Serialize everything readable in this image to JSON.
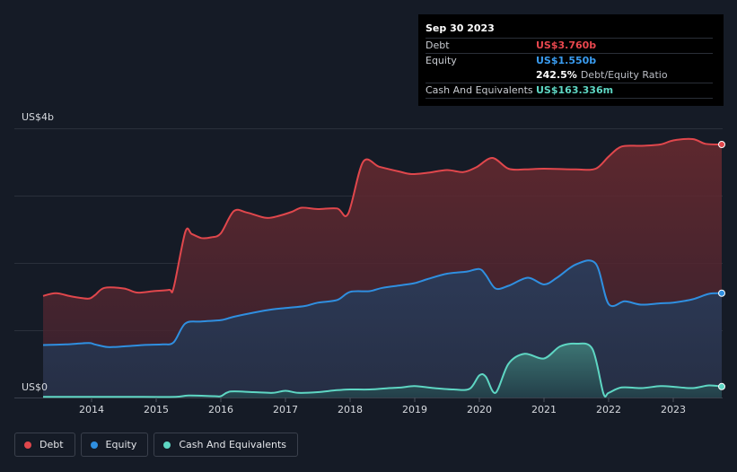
{
  "chart_data": {
    "type": "area",
    "currency_unit": "US$ billions",
    "y_axis": {
      "top_label": "US$4b",
      "bottom_label": "US$0",
      "ylim": [
        0,
        4.0
      ]
    },
    "x_axis": {
      "ticks": [
        "2014",
        "2015",
        "2016",
        "2017",
        "2018",
        "2019",
        "2020",
        "2021",
        "2022",
        "2023"
      ],
      "xlim": [
        2013.25,
        2023.85
      ]
    },
    "series": [
      {
        "name": "Debt",
        "color": "#e0474c",
        "points": [
          [
            2013.25,
            1.51
          ],
          [
            2013.45,
            1.55
          ],
          [
            2013.7,
            1.5
          ],
          [
            2013.95,
            1.47
          ],
          [
            2014.05,
            1.52
          ],
          [
            2014.2,
            1.63
          ],
          [
            2014.5,
            1.62
          ],
          [
            2014.7,
            1.56
          ],
          [
            2014.95,
            1.58
          ],
          [
            2015.2,
            1.6
          ],
          [
            2015.27,
            1.63
          ],
          [
            2015.45,
            2.46
          ],
          [
            2015.55,
            2.43
          ],
          [
            2015.7,
            2.37
          ],
          [
            2015.85,
            2.38
          ],
          [
            2016.0,
            2.44
          ],
          [
            2016.2,
            2.77
          ],
          [
            2016.4,
            2.75
          ],
          [
            2016.7,
            2.67
          ],
          [
            2016.9,
            2.7
          ],
          [
            2017.1,
            2.76
          ],
          [
            2017.25,
            2.82
          ],
          [
            2017.5,
            2.8
          ],
          [
            2017.8,
            2.81
          ],
          [
            2017.97,
            2.73
          ],
          [
            2018.2,
            3.5
          ],
          [
            2018.45,
            3.43
          ],
          [
            2018.75,
            3.36
          ],
          [
            2018.95,
            3.32
          ],
          [
            2019.2,
            3.34
          ],
          [
            2019.5,
            3.38
          ],
          [
            2019.75,
            3.35
          ],
          [
            2019.95,
            3.42
          ],
          [
            2020.2,
            3.56
          ],
          [
            2020.45,
            3.4
          ],
          [
            2020.7,
            3.39
          ],
          [
            2021.0,
            3.4
          ],
          [
            2021.5,
            3.39
          ],
          [
            2021.8,
            3.4
          ],
          [
            2022.0,
            3.58
          ],
          [
            2022.2,
            3.73
          ],
          [
            2022.5,
            3.74
          ],
          [
            2022.8,
            3.76
          ],
          [
            2023.0,
            3.82
          ],
          [
            2023.3,
            3.84
          ],
          [
            2023.5,
            3.77
          ],
          [
            2023.75,
            3.76
          ]
        ]
      },
      {
        "name": "Equity",
        "color": "#2f8fe0",
        "points": [
          [
            2013.25,
            0.78
          ],
          [
            2013.6,
            0.79
          ],
          [
            2013.95,
            0.81
          ],
          [
            2014.05,
            0.79
          ],
          [
            2014.25,
            0.75
          ],
          [
            2014.5,
            0.76
          ],
          [
            2014.8,
            0.78
          ],
          [
            2015.1,
            0.79
          ],
          [
            2015.27,
            0.82
          ],
          [
            2015.45,
            1.1
          ],
          [
            2015.7,
            1.13
          ],
          [
            2016.0,
            1.15
          ],
          [
            2016.2,
            1.2
          ],
          [
            2016.5,
            1.26
          ],
          [
            2016.8,
            1.31
          ],
          [
            2017.0,
            1.33
          ],
          [
            2017.3,
            1.36
          ],
          [
            2017.5,
            1.41
          ],
          [
            2017.8,
            1.45
          ],
          [
            2018.0,
            1.57
          ],
          [
            2018.3,
            1.58
          ],
          [
            2018.5,
            1.63
          ],
          [
            2018.8,
            1.67
          ],
          [
            2019.0,
            1.7
          ],
          [
            2019.2,
            1.76
          ],
          [
            2019.5,
            1.84
          ],
          [
            2019.8,
            1.87
          ],
          [
            2020.0,
            1.91
          ],
          [
            2020.1,
            1.82
          ],
          [
            2020.25,
            1.62
          ],
          [
            2020.45,
            1.66
          ],
          [
            2020.75,
            1.78
          ],
          [
            2021.0,
            1.68
          ],
          [
            2021.2,
            1.78
          ],
          [
            2021.5,
            1.98
          ],
          [
            2021.8,
            1.99
          ],
          [
            2022.0,
            1.39
          ],
          [
            2022.25,
            1.43
          ],
          [
            2022.5,
            1.38
          ],
          [
            2022.8,
            1.4
          ],
          [
            2023.0,
            1.41
          ],
          [
            2023.3,
            1.46
          ],
          [
            2023.55,
            1.54
          ],
          [
            2023.75,
            1.55
          ]
        ]
      },
      {
        "name": "Cash And Equivalents",
        "color": "#5ed6c3",
        "points": [
          [
            2013.25,
            0.01
          ],
          [
            2014.0,
            0.01
          ],
          [
            2014.8,
            0.01
          ],
          [
            2015.3,
            0.01
          ],
          [
            2015.5,
            0.03
          ],
          [
            2015.9,
            0.02
          ],
          [
            2016.0,
            0.02
          ],
          [
            2016.15,
            0.09
          ],
          [
            2016.5,
            0.08
          ],
          [
            2016.8,
            0.07
          ],
          [
            2017.0,
            0.1
          ],
          [
            2017.2,
            0.07
          ],
          [
            2017.5,
            0.08
          ],
          [
            2017.8,
            0.11
          ],
          [
            2018.0,
            0.12
          ],
          [
            2018.3,
            0.12
          ],
          [
            2018.6,
            0.14
          ],
          [
            2018.8,
            0.15
          ],
          [
            2019.0,
            0.17
          ],
          [
            2019.3,
            0.14
          ],
          [
            2019.6,
            0.12
          ],
          [
            2019.85,
            0.13
          ],
          [
            2020.0,
            0.33
          ],
          [
            2020.1,
            0.31
          ],
          [
            2020.25,
            0.07
          ],
          [
            2020.45,
            0.5
          ],
          [
            2020.7,
            0.65
          ],
          [
            2021.0,
            0.58
          ],
          [
            2021.25,
            0.76
          ],
          [
            2021.5,
            0.8
          ],
          [
            2021.75,
            0.72
          ],
          [
            2021.92,
            0.06
          ],
          [
            2022.0,
            0.07
          ],
          [
            2022.2,
            0.15
          ],
          [
            2022.5,
            0.14
          ],
          [
            2022.8,
            0.17
          ],
          [
            2023.0,
            0.16
          ],
          [
            2023.3,
            0.14
          ],
          [
            2023.55,
            0.18
          ],
          [
            2023.75,
            0.163
          ]
        ]
      }
    ],
    "gridlines_at": [
      0,
      1,
      2,
      3,
      4
    ]
  },
  "tooltip": {
    "date": "Sep 30 2023",
    "debt_label": "Debt",
    "debt_value": "US$3.760b",
    "equity_label": "Equity",
    "equity_value": "US$1.550b",
    "ratio_value": "242.5%",
    "ratio_label": "Debt/Equity Ratio",
    "cash_label": "Cash And Equivalents",
    "cash_value": "US$163.336m"
  },
  "legend": [
    {
      "label": "Debt",
      "color": "#e0474c"
    },
    {
      "label": "Equity",
      "color": "#2f8fe0"
    },
    {
      "label": "Cash And Equivalents",
      "color": "#5ed6c3"
    }
  ]
}
